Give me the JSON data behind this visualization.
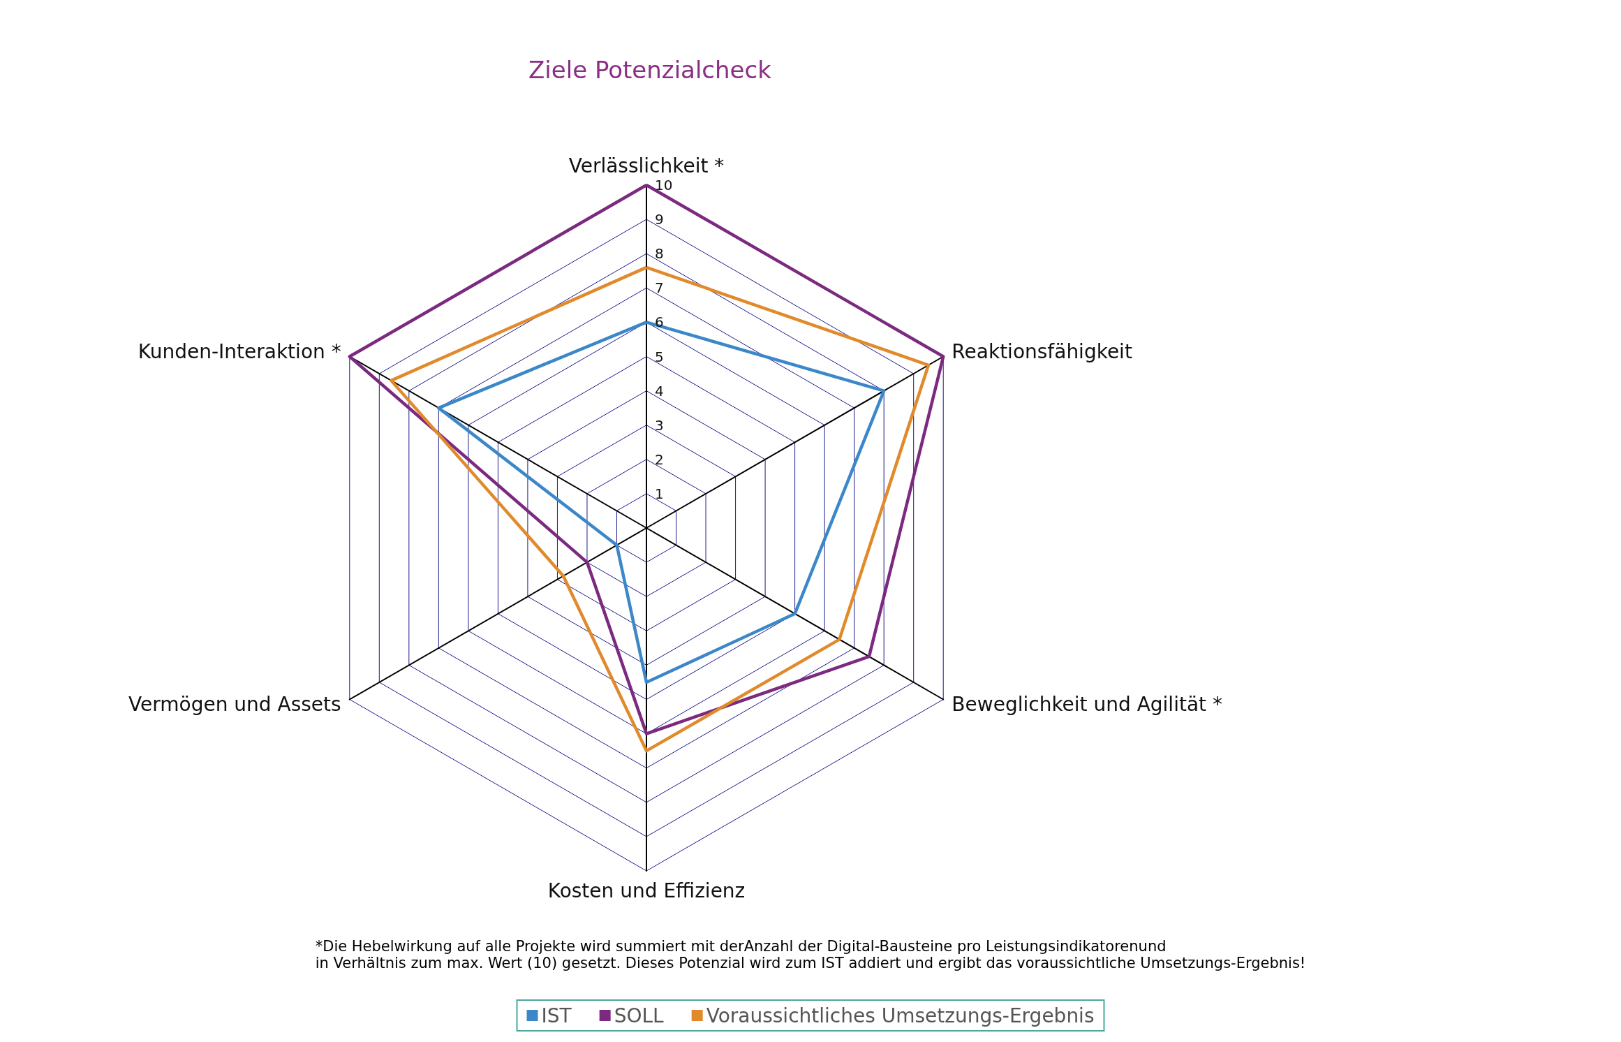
{
  "chart_data": {
    "type": "radar",
    "title": "Ziele Potenzialcheck",
    "categories": [
      "Verlässlichkeit *",
      "Reaktionsfähigkeit",
      "Beweglichkeit und Agilität *",
      "Kosten und Effizienz",
      "Vermögen und Assets",
      "Kunden-Interaktion *"
    ],
    "series": [
      {
        "name": "IST",
        "color": "#3c87c8",
        "values": [
          6,
          8,
          5,
          4.5,
          1,
          7
        ]
      },
      {
        "name": "SOLL",
        "color": "#7b2a7f",
        "values": [
          10,
          10,
          7.5,
          6,
          2,
          10
        ]
      },
      {
        "name": "Voraussichtliches Umsetzungs-Ergebnis",
        "color": "#e08a2c",
        "values": [
          7.6,
          9.5,
          6.5,
          6.5,
          2.8,
          8.6
        ]
      }
    ],
    "ylim": [
      0,
      10
    ],
    "yticks": [
      1,
      2,
      3,
      4,
      5,
      6,
      7,
      8,
      9,
      10
    ],
    "grid": true,
    "legend": "bottom",
    "marker": "none",
    "line_style": "solid",
    "annotations": [
      "*Die Hebelwirkung auf alle Projekte wird summiert mit derAnzahl der Digital-Bausteine pro Leistungsindikatorenund\nin Verhältnis zum max. Wert (10) gesetzt. Dieses Potenzial wird zum IST addiert und ergibt das voraussichtliche Umsetzungs-Ergebnis!"
    ]
  }
}
